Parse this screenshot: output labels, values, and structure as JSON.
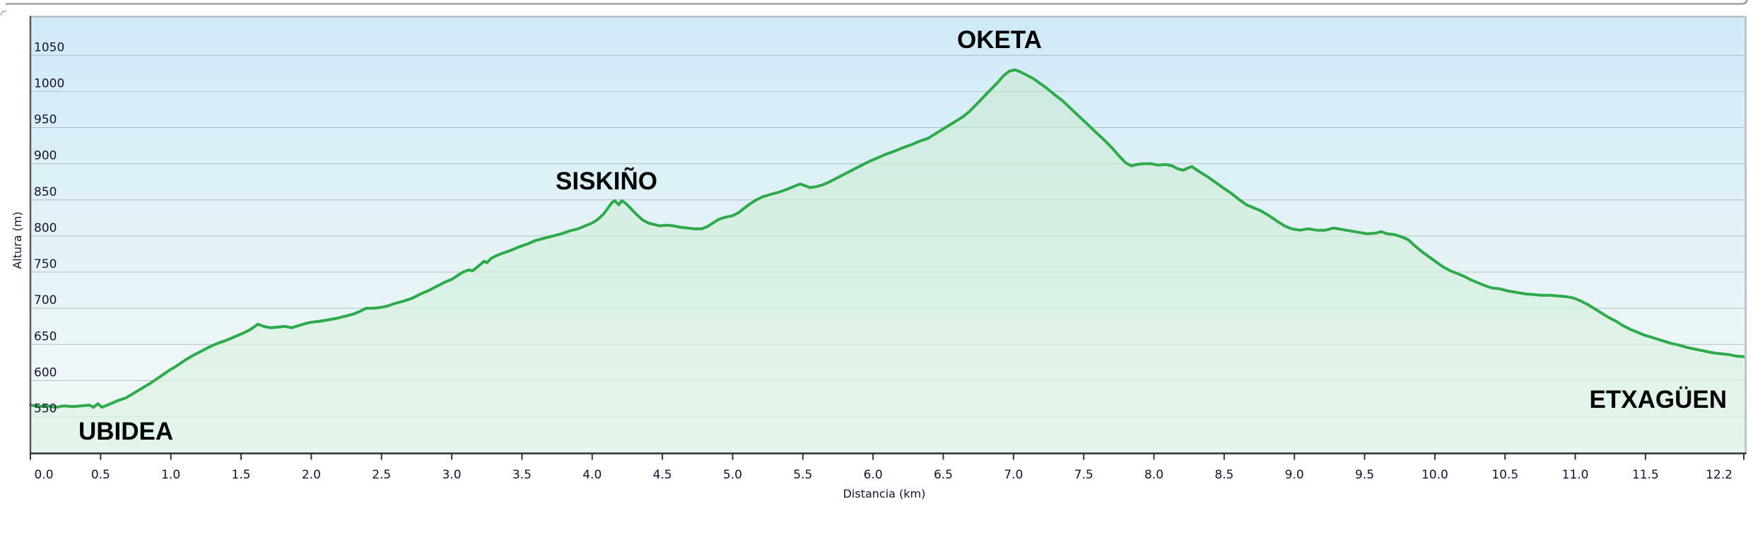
{
  "chart_data": {
    "type": "area",
    "title": "",
    "xlabel": "Distancia  (km)",
    "ylabel": "Altura (m)",
    "xlim": [
      0,
      12.2
    ],
    "ylim": [
      498,
      1105
    ],
    "grid": "horizontal, every 50 m",
    "legend": "none",
    "x_ticks": [
      {
        "value": 0.0,
        "label": "0.0"
      },
      {
        "value": 0.5,
        "label": "0.5"
      },
      {
        "value": 1.0,
        "label": "1.0"
      },
      {
        "value": 1.5,
        "label": "1.5"
      },
      {
        "value": 2.0,
        "label": "2.0"
      },
      {
        "value": 2.5,
        "label": "2.5"
      },
      {
        "value": 3.0,
        "label": "3.0"
      },
      {
        "value": 3.5,
        "label": "3.5"
      },
      {
        "value": 4.0,
        "label": "4.0"
      },
      {
        "value": 4.5,
        "label": "4.5"
      },
      {
        "value": 5.0,
        "label": "5.0"
      },
      {
        "value": 5.5,
        "label": "5.5"
      },
      {
        "value": 6.0,
        "label": "6.0"
      },
      {
        "value": 6.5,
        "label": "6.5"
      },
      {
        "value": 7.0,
        "label": "7.0"
      },
      {
        "value": 7.5,
        "label": "7.5"
      },
      {
        "value": 8.0,
        "label": "8.0"
      },
      {
        "value": 8.5,
        "label": "8.5"
      },
      {
        "value": 9.0,
        "label": "9.0"
      },
      {
        "value": 9.5,
        "label": "9.5"
      },
      {
        "value": 10.0,
        "label": "10.0"
      },
      {
        "value": 10.5,
        "label": "10.5"
      },
      {
        "value": 11.0,
        "label": "11.0"
      },
      {
        "value": 11.5,
        "label": "11.5"
      },
      {
        "value": 12.2,
        "label": "12.2"
      }
    ],
    "y_ticks": [
      {
        "value": 550,
        "label": "550"
      },
      {
        "value": 600,
        "label": "600"
      },
      {
        "value": 650,
        "label": "650"
      },
      {
        "value": 700,
        "label": "700"
      },
      {
        "value": 750,
        "label": "750"
      },
      {
        "value": 800,
        "label": "800"
      },
      {
        "value": 850,
        "label": "850"
      },
      {
        "value": 900,
        "label": "900"
      },
      {
        "value": 950,
        "label": "950"
      },
      {
        "value": 1000,
        "label": "1000"
      },
      {
        "value": 1050,
        "label": "1050"
      }
    ],
    "waypoints": [
      {
        "label": "UBIDEA",
        "km": 0.0,
        "elev_m": 566,
        "label_km": 0.34,
        "label_elev_m": 518,
        "anchor": "start"
      },
      {
        "label": "SISKIÑO",
        "km": 4.16,
        "elev_m": 849,
        "label_km": 4.1,
        "label_elev_m": 864,
        "anchor": "middle"
      },
      {
        "label": "OKETA",
        "km": 7.01,
        "elev_m": 1030,
        "label_km": 6.9,
        "label_elev_m": 1060,
        "anchor": "middle"
      },
      {
        "label": "ETXAGÜEN",
        "km": 12.2,
        "elev_m": 633,
        "label_km": 12.08,
        "label_elev_m": 562,
        "anchor": "end"
      }
    ],
    "series": [
      {
        "name": "Altura",
        "points": [
          [
            0.0,
            566
          ],
          [
            0.06,
            564
          ],
          [
            0.12,
            565
          ],
          [
            0.18,
            563
          ],
          [
            0.24,
            565
          ],
          [
            0.3,
            564
          ],
          [
            0.36,
            565
          ],
          [
            0.42,
            566
          ],
          [
            0.45,
            563
          ],
          [
            0.48,
            568
          ],
          [
            0.51,
            563
          ],
          [
            0.56,
            567
          ],
          [
            0.62,
            572
          ],
          [
            0.68,
            576
          ],
          [
            0.74,
            583
          ],
          [
            0.8,
            590
          ],
          [
            0.86,
            597
          ],
          [
            0.92,
            605
          ],
          [
            0.98,
            613
          ],
          [
            1.04,
            620
          ],
          [
            1.1,
            628
          ],
          [
            1.16,
            635
          ],
          [
            1.22,
            641
          ],
          [
            1.28,
            647
          ],
          [
            1.34,
            652
          ],
          [
            1.4,
            656
          ],
          [
            1.46,
            661
          ],
          [
            1.52,
            666
          ],
          [
            1.57,
            671
          ],
          [
            1.62,
            678
          ],
          [
            1.66,
            675
          ],
          [
            1.71,
            673
          ],
          [
            1.76,
            674
          ],
          [
            1.81,
            675
          ],
          [
            1.86,
            673
          ],
          [
            1.91,
            676
          ],
          [
            1.96,
            679
          ],
          [
            2.01,
            681
          ],
          [
            2.06,
            682
          ],
          [
            2.12,
            684
          ],
          [
            2.18,
            686
          ],
          [
            2.24,
            689
          ],
          [
            2.3,
            692
          ],
          [
            2.35,
            696
          ],
          [
            2.39,
            700
          ],
          [
            2.44,
            700
          ],
          [
            2.49,
            701
          ],
          [
            2.54,
            703
          ],
          [
            2.6,
            707
          ],
          [
            2.66,
            710
          ],
          [
            2.72,
            714
          ],
          [
            2.78,
            720
          ],
          [
            2.84,
            725
          ],
          [
            2.9,
            731
          ],
          [
            2.95,
            736
          ],
          [
            3.0,
            740
          ],
          [
            3.04,
            745
          ],
          [
            3.08,
            750
          ],
          [
            3.12,
            753
          ],
          [
            3.15,
            752
          ],
          [
            3.2,
            760
          ],
          [
            3.23,
            765
          ],
          [
            3.25,
            763
          ],
          [
            3.28,
            769
          ],
          [
            3.31,
            772
          ],
          [
            3.36,
            776
          ],
          [
            3.42,
            780
          ],
          [
            3.48,
            785
          ],
          [
            3.54,
            789
          ],
          [
            3.6,
            794
          ],
          [
            3.66,
            797
          ],
          [
            3.72,
            800
          ],
          [
            3.78,
            803
          ],
          [
            3.84,
            807
          ],
          [
            3.9,
            810
          ],
          [
            3.95,
            814
          ],
          [
            4.0,
            818
          ],
          [
            4.04,
            823
          ],
          [
            4.08,
            830
          ],
          [
            4.11,
            838
          ],
          [
            4.14,
            846
          ],
          [
            4.16,
            849
          ],
          [
            4.19,
            843
          ],
          [
            4.21,
            849
          ],
          [
            4.24,
            845
          ],
          [
            4.28,
            837
          ],
          [
            4.32,
            829
          ],
          [
            4.36,
            822
          ],
          [
            4.4,
            818
          ],
          [
            4.44,
            816
          ],
          [
            4.48,
            814
          ],
          [
            4.53,
            815
          ],
          [
            4.58,
            814
          ],
          [
            4.63,
            812
          ],
          [
            4.68,
            811
          ],
          [
            4.73,
            810
          ],
          [
            4.78,
            810
          ],
          [
            4.82,
            813
          ],
          [
            4.86,
            818
          ],
          [
            4.9,
            823
          ],
          [
            4.95,
            826
          ],
          [
            5.0,
            828
          ],
          [
            5.04,
            832
          ],
          [
            5.08,
            838
          ],
          [
            5.12,
            844
          ],
          [
            5.16,
            849
          ],
          [
            5.21,
            854
          ],
          [
            5.26,
            857
          ],
          [
            5.32,
            860
          ],
          [
            5.38,
            864
          ],
          [
            5.43,
            868
          ],
          [
            5.48,
            872
          ],
          [
            5.51,
            870
          ],
          [
            5.55,
            867
          ],
          [
            5.59,
            868
          ],
          [
            5.63,
            870
          ],
          [
            5.68,
            874
          ],
          [
            5.73,
            879
          ],
          [
            5.79,
            885
          ],
          [
            5.85,
            891
          ],
          [
            5.91,
            897
          ],
          [
            5.97,
            903
          ],
          [
            6.03,
            908
          ],
          [
            6.09,
            913
          ],
          [
            6.15,
            917
          ],
          [
            6.21,
            922
          ],
          [
            6.27,
            926
          ],
          [
            6.33,
            931
          ],
          [
            6.39,
            935
          ],
          [
            6.44,
            941
          ],
          [
            6.49,
            947
          ],
          [
            6.54,
            953
          ],
          [
            6.59,
            959
          ],
          [
            6.64,
            965
          ],
          [
            6.69,
            973
          ],
          [
            6.74,
            983
          ],
          [
            6.79,
            993
          ],
          [
            6.84,
            1003
          ],
          [
            6.89,
            1013
          ],
          [
            6.93,
            1022
          ],
          [
            6.97,
            1028
          ],
          [
            7.01,
            1030
          ],
          [
            7.05,
            1027
          ],
          [
            7.09,
            1023
          ],
          [
            7.14,
            1018
          ],
          [
            7.19,
            1011
          ],
          [
            7.24,
            1004
          ],
          [
            7.29,
            996
          ],
          [
            7.35,
            987
          ],
          [
            7.41,
            976
          ],
          [
            7.47,
            965
          ],
          [
            7.53,
            954
          ],
          [
            7.59,
            943
          ],
          [
            7.65,
            932
          ],
          [
            7.71,
            920
          ],
          [
            7.76,
            909
          ],
          [
            7.8,
            901
          ],
          [
            7.84,
            897
          ],
          [
            7.88,
            899
          ],
          [
            7.93,
            900
          ],
          [
            7.98,
            900
          ],
          [
            8.03,
            898
          ],
          [
            8.08,
            899
          ],
          [
            8.13,
            897
          ],
          [
            8.17,
            893
          ],
          [
            8.21,
            891
          ],
          [
            8.24,
            894
          ],
          [
            8.27,
            896
          ],
          [
            8.3,
            892
          ],
          [
            8.34,
            887
          ],
          [
            8.39,
            881
          ],
          [
            8.44,
            874
          ],
          [
            8.49,
            867
          ],
          [
            8.55,
            859
          ],
          [
            8.61,
            850
          ],
          [
            8.66,
            843
          ],
          [
            8.71,
            839
          ],
          [
            8.76,
            835
          ],
          [
            8.82,
            828
          ],
          [
            8.88,
            820
          ],
          [
            8.93,
            814
          ],
          [
            8.98,
            810
          ],
          [
            9.04,
            808
          ],
          [
            9.1,
            810
          ],
          [
            9.16,
            808
          ],
          [
            9.22,
            808
          ],
          [
            9.28,
            811
          ],
          [
            9.34,
            809
          ],
          [
            9.4,
            807
          ],
          [
            9.46,
            805
          ],
          [
            9.52,
            803
          ],
          [
            9.58,
            804
          ],
          [
            9.62,
            806
          ],
          [
            9.66,
            803
          ],
          [
            9.71,
            802
          ],
          [
            9.76,
            799
          ],
          [
            9.81,
            795
          ],
          [
            9.86,
            786
          ],
          [
            9.91,
            778
          ],
          [
            9.96,
            771
          ],
          [
            10.01,
            764
          ],
          [
            10.06,
            757
          ],
          [
            10.11,
            752
          ],
          [
            10.16,
            748
          ],
          [
            10.21,
            744
          ],
          [
            10.26,
            739
          ],
          [
            10.31,
            735
          ],
          [
            10.36,
            731
          ],
          [
            10.41,
            728
          ],
          [
            10.46,
            727
          ],
          [
            10.52,
            724
          ],
          [
            10.58,
            722
          ],
          [
            10.64,
            720
          ],
          [
            10.7,
            719
          ],
          [
            10.76,
            718
          ],
          [
            10.82,
            718
          ],
          [
            10.88,
            717
          ],
          [
            10.94,
            716
          ],
          [
            10.99,
            714
          ],
          [
            11.04,
            710
          ],
          [
            11.09,
            705
          ],
          [
            11.14,
            699
          ],
          [
            11.19,
            693
          ],
          [
            11.24,
            687
          ],
          [
            11.29,
            682
          ],
          [
            11.34,
            676
          ],
          [
            11.39,
            671
          ],
          [
            11.44,
            667
          ],
          [
            11.49,
            663
          ],
          [
            11.54,
            660
          ],
          [
            11.59,
            657
          ],
          [
            11.64,
            654
          ],
          [
            11.69,
            651
          ],
          [
            11.74,
            649
          ],
          [
            11.79,
            646
          ],
          [
            11.84,
            644
          ],
          [
            11.89,
            642
          ],
          [
            11.94,
            640
          ],
          [
            11.99,
            638
          ],
          [
            12.04,
            637
          ],
          [
            12.09,
            636
          ],
          [
            12.14,
            634
          ],
          [
            12.2,
            633
          ]
        ]
      }
    ],
    "colors": {
      "line": "#2ea94b",
      "area_top": "rgba(199,232,206,0.55)",
      "area_bottom": "rgba(226,245,232,0.80)",
      "bg_top": "#d0eaf7",
      "bg_mid": "#eef7f7",
      "bg_bottom": "#ecf7f1",
      "grid": "#b3bfc3",
      "axis_text": "#141432",
      "waypoint_text": "#000000",
      "border_left": "#5a5a5a",
      "border_top": "#b3b3b3",
      "border_right": "#bcc6ca",
      "border_bottom": "#2f2f2f",
      "tick": "#333333",
      "panel_fragment": "#9ba1a4"
    }
  }
}
